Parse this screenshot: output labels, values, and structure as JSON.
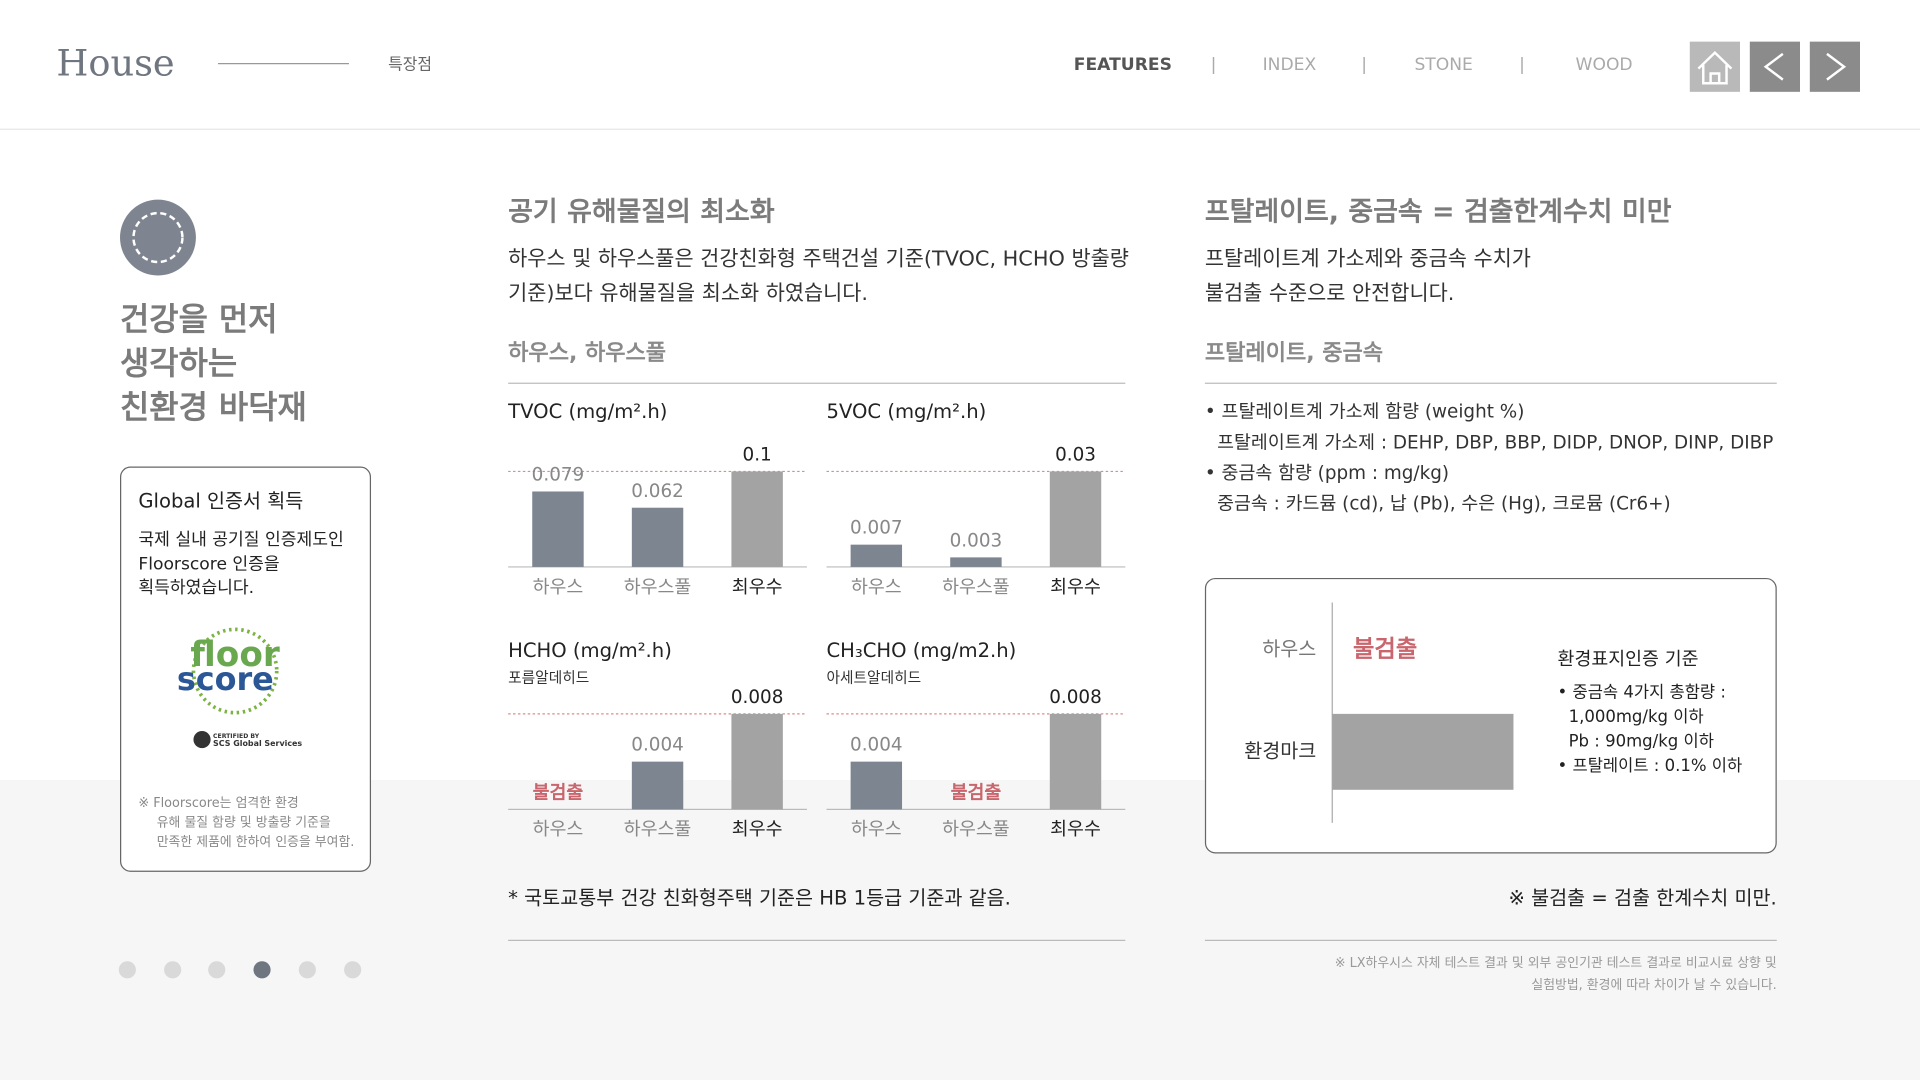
{
  "header": {
    "logo": "House",
    "page": "특장점",
    "nav": [
      "FEATURES",
      "INDEX",
      "STONE",
      "WOOD"
    ],
    "separator": "|"
  },
  "left": {
    "heading": [
      "건강을 먼저",
      "생각하는",
      "친환경 바닥재"
    ],
    "card": {
      "title": "Global 인증서 획득",
      "body": [
        "국제 실내 공기질 인증제도인",
        "Floorscore 인증을",
        "획득하였습니다."
      ],
      "logo": [
        "floor",
        "score"
      ],
      "certified": "CERTIFIED BY",
      "certifier": "SCS Global Services",
      "note": [
        "※ Floorscore는 엄격한 환경",
        "유해 물질 함량 및 방출량 기준을",
        "만족한 제품에 한하여 인증을 부여함."
      ]
    }
  },
  "middle": {
    "title": "공기 유해물질의 최소화",
    "body": [
      "하우스 및 하우스풀은 건강친화형 주택건설 기준(TVOC, HCHO 방출량",
      "기준)보다 유해물질을 최소화 하였습니다."
    ],
    "subtitle": "하우스, 하우스풀",
    "bar_colors": [
      "#7d8590",
      "#7d8590",
      "#a3a3a3"
    ],
    "charts": [
      {
        "type": "bar",
        "title": "TVOC (mg/m².h)",
        "categories": [
          "하우스",
          "하우스풀",
          "최우수"
        ],
        "values": [
          0.079,
          0.062,
          0.1
        ]
      },
      {
        "type": "bar",
        "title": "5VOC (mg/m².h)",
        "categories": [
          "하우스",
          "하우스풀",
          "최우수"
        ],
        "values": [
          0.007,
          0.003,
          0.03
        ]
      },
      {
        "type": "bar",
        "title": "HCHO (mg/m².h)",
        "subtitle": "포름알데히드",
        "categories": [
          "하우스",
          "하우스풀",
          "최우수"
        ],
        "values": [
          null,
          0.004,
          0.008
        ],
        "value_labels": [
          "불검출",
          "0.004",
          "0.008"
        ]
      },
      {
        "type": "bar",
        "title": "CH₃CHO (mg/m2.h)",
        "subtitle": "아세트알데히드",
        "categories": [
          "하우스",
          "하우스풀",
          "최우수"
        ],
        "values": [
          0.004,
          null,
          0.008
        ],
        "value_labels": [
          "0.004",
          "불검출",
          "0.008"
        ]
      }
    ],
    "footnote": "* 국토교통부 건강 친화형주택 기준은 HB 1등급 기준과 같음."
  },
  "right": {
    "title": "프탈레이트, 중금속 = 검출한계수치 미만",
    "body": [
      "프탈레이트계 가소제와 중금속 수치가",
      "불검출 수준으로 안전합니다."
    ],
    "subtitle": "프탈레이트, 중금속",
    "bullets": [
      "• 프탈레이트계 가소제 함량 (weight %)",
      "프탈레이트계 가소제 : DEHP, DBP, BBP, DIDP, DNOP, DINP, DIBP",
      "• 중금속 함량 (ppm : mg/kg)",
      "중금속 : 카드뮴 (cd), 납 (Pb), 수은 (Hg), 크로뮴 (Cr6+)"
    ],
    "comparison": {
      "rows": [
        "하우스",
        "환경마크"
      ],
      "result": "불검출",
      "standard_title": "환경표지인증 기준",
      "standard": [
        "• 중금속 4가지 총함량 :",
        "1,000mg/kg 이하",
        "Pb : 90mg/kg 이하",
        "• 프탈레이트 : 0.1% 이하"
      ]
    },
    "note": "※ 불검출 = 검출 한계수치 미만.",
    "footnote": [
      "※ LX하우시스 자체 테스트 결과 및 외부 공인기관 테스트 결과로 비교시료 상향 및",
      "실험방법, 환경에 따라 차이가 날 수 있습니다."
    ]
  }
}
